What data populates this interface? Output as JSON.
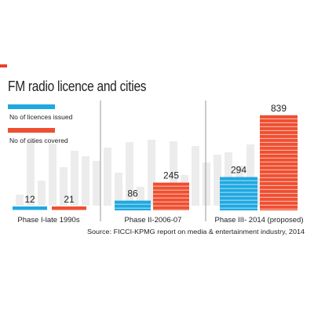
{
  "title": "FM radio licence and cities",
  "source": "Source: FICCI-KPMG report on media & entertainment industry, 2014",
  "colors": {
    "licences": "#1fa8e0",
    "cities": "#ef4f31",
    "background_bars": "#ececec",
    "divider": "#9a9a9a",
    "text": "#222222"
  },
  "chart_data": {
    "type": "bar",
    "categories": [
      "Phase I-late 1990s",
      "Phase II-2006-07",
      "Phase III- 2014 (proposed)"
    ],
    "series": [
      {
        "name": "No of licences issued",
        "values": [
          12,
          86,
          294
        ]
      },
      {
        "name": "No of cities covered",
        "values": [
          21,
          245,
          839
        ]
      }
    ],
    "title": "FM radio licence and cities",
    "ylim": [
      0,
      900
    ],
    "grid": false,
    "legend": "top-left"
  }
}
